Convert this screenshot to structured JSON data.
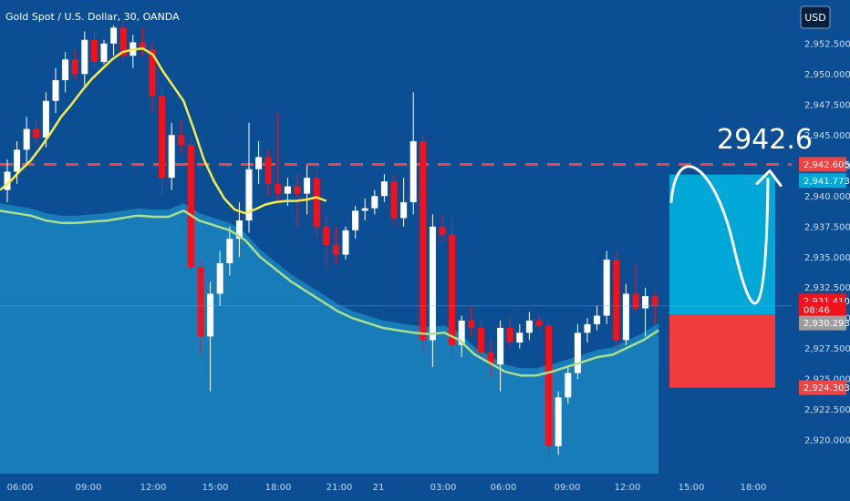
{
  "header": {
    "symbol_title": "Gold Spot / U.S. Dollar, 30, OANDA",
    "currency": "USD"
  },
  "target_label": "2942.6",
  "price_tags": {
    "target": "2,942.605",
    "upper_box": "2,941.773",
    "last": "2,931.410",
    "countdown": "08:46",
    "mid": "2,930.293",
    "stop": "2,924.303"
  },
  "colors": {
    "background": "#0b4e93",
    "bull_candle": "#ffffff",
    "bear_candle": "#f2121b",
    "ma_fast": "#f5ec4a",
    "ma_slow": "#a8e08f",
    "area_fill": "#1e8cc4",
    "target_line": "#f04343",
    "profit_box": "#00a8d8",
    "loss_box": "#f03c3c"
  },
  "chart_data": {
    "type": "candlestick",
    "title": "Gold Spot / U.S. Dollar, 30, OANDA",
    "ylabel": "",
    "xlabel": "",
    "ylim": [
      2918,
      2952
    ],
    "y_ticks": [
      "2,920.000",
      "2,922.500",
      "2,925.000",
      "2,927.500",
      "2,930.000",
      "2,932.500",
      "2,935.000",
      "2,937.500",
      "2,940.000",
      "2,942.500",
      "2,945.000",
      "2,947.500",
      "2,950.000",
      "2,952.500"
    ],
    "x_ticks": [
      "06:00",
      "09:00",
      "12:00",
      "15:00",
      "18:00",
      "21:00",
      "21",
      "03:00",
      "06:00",
      "09:00",
      "12:00",
      "15:00",
      "18:00"
    ],
    "grid": false,
    "candles": [
      {
        "o": 2940.5,
        "h": 2943.0,
        "l": 2939.5,
        "c": 2942.0
      },
      {
        "o": 2942.0,
        "h": 2944.5,
        "l": 2941.0,
        "c": 2943.8
      },
      {
        "o": 2943.8,
        "h": 2946.5,
        "l": 2942.5,
        "c": 2945.5
      },
      {
        "o": 2945.5,
        "h": 2946.2,
        "l": 2944.2,
        "c": 2944.8
      },
      {
        "o": 2944.8,
        "h": 2948.5,
        "l": 2944.0,
        "c": 2947.8
      },
      {
        "o": 2947.8,
        "h": 2950.5,
        "l": 2946.8,
        "c": 2949.5
      },
      {
        "o": 2949.5,
        "h": 2951.8,
        "l": 2948.5,
        "c": 2951.2
      },
      {
        "o": 2951.2,
        "h": 2952.0,
        "l": 2949.5,
        "c": 2950.0
      },
      {
        "o": 2950.0,
        "h": 2953.5,
        "l": 2949.0,
        "c": 2952.8
      },
      {
        "o": 2952.8,
        "h": 2953.5,
        "l": 2950.5,
        "c": 2951.0
      },
      {
        "o": 2951.0,
        "h": 2952.8,
        "l": 2950.8,
        "c": 2952.5
      },
      {
        "o": 2952.5,
        "h": 2954.0,
        "l": 2951.5,
        "c": 2953.8
      },
      {
        "o": 2953.8,
        "h": 2954.5,
        "l": 2951.0,
        "c": 2951.5
      },
      {
        "o": 2951.5,
        "h": 2953.2,
        "l": 2950.5,
        "c": 2952.6
      },
      {
        "o": 2952.6,
        "h": 2953.8,
        "l": 2951.5,
        "c": 2952.0
      },
      {
        "o": 2952.0,
        "h": 2952.6,
        "l": 2946.8,
        "c": 2948.2
      },
      {
        "o": 2948.2,
        "h": 2948.8,
        "l": 2940.0,
        "c": 2941.5
      },
      {
        "o": 2941.5,
        "h": 2946.0,
        "l": 2940.5,
        "c": 2945.0
      },
      {
        "o": 2945.0,
        "h": 2946.2,
        "l": 2943.5,
        "c": 2944.2
      },
      {
        "o": 2944.2,
        "h": 2944.8,
        "l": 2933.8,
        "c": 2934.2
      },
      {
        "o": 2934.2,
        "h": 2934.8,
        "l": 2927.0,
        "c": 2928.5
      },
      {
        "o": 2928.5,
        "h": 2933.0,
        "l": 2924.0,
        "c": 2932.0
      },
      {
        "o": 2932.0,
        "h": 2935.5,
        "l": 2931.0,
        "c": 2934.5
      },
      {
        "o": 2934.5,
        "h": 2937.5,
        "l": 2933.5,
        "c": 2936.5
      },
      {
        "o": 2936.5,
        "h": 2939.5,
        "l": 2935.0,
        "c": 2938.0
      },
      {
        "o": 2938.0,
        "h": 2946.0,
        "l": 2937.0,
        "c": 2942.2
      },
      {
        "o": 2942.2,
        "h": 2944.5,
        "l": 2941.0,
        "c": 2943.2
      },
      {
        "o": 2943.2,
        "h": 2943.8,
        "l": 2940.0,
        "c": 2941.0
      },
      {
        "o": 2941.0,
        "h": 2946.8,
        "l": 2939.5,
        "c": 2940.2
      },
      {
        "o": 2940.2,
        "h": 2941.5,
        "l": 2939.2,
        "c": 2940.8
      },
      {
        "o": 2940.8,
        "h": 2941.8,
        "l": 2937.5,
        "c": 2940.2
      },
      {
        "o": 2940.2,
        "h": 2942.5,
        "l": 2938.5,
        "c": 2941.5
      },
      {
        "o": 2941.5,
        "h": 2942.2,
        "l": 2936.5,
        "c": 2937.5
      },
      {
        "o": 2937.5,
        "h": 2938.5,
        "l": 2934.0,
        "c": 2936.0
      },
      {
        "o": 2936.0,
        "h": 2937.5,
        "l": 2934.5,
        "c": 2935.2
      },
      {
        "o": 2935.2,
        "h": 2937.5,
        "l": 2934.8,
        "c": 2937.2
      },
      {
        "o": 2937.2,
        "h": 2939.2,
        "l": 2936.5,
        "c": 2938.8
      },
      {
        "o": 2938.8,
        "h": 2939.8,
        "l": 2938.0,
        "c": 2939.0
      },
      {
        "o": 2939.0,
        "h": 2940.5,
        "l": 2938.5,
        "c": 2940.0
      },
      {
        "o": 2940.0,
        "h": 2941.8,
        "l": 2939.5,
        "c": 2941.2
      },
      {
        "o": 2941.2,
        "h": 2941.8,
        "l": 2937.5,
        "c": 2938.2
      },
      {
        "o": 2938.2,
        "h": 2941.5,
        "l": 2937.5,
        "c": 2939.5
      },
      {
        "o": 2939.5,
        "h": 2948.5,
        "l": 2938.5,
        "c": 2944.5
      },
      {
        "o": 2944.5,
        "h": 2945.0,
        "l": 2927.2,
        "c": 2928.2
      },
      {
        "o": 2928.2,
        "h": 2938.5,
        "l": 2926.0,
        "c": 2937.5
      },
      {
        "o": 2937.5,
        "h": 2938.5,
        "l": 2936.2,
        "c": 2936.8
      },
      {
        "o": 2936.8,
        "h": 2938.2,
        "l": 2926.5,
        "c": 2927.8
      },
      {
        "o": 2927.8,
        "h": 2930.2,
        "l": 2926.8,
        "c": 2929.8
      },
      {
        "o": 2929.8,
        "h": 2931.0,
        "l": 2928.5,
        "c": 2929.2
      },
      {
        "o": 2929.2,
        "h": 2929.8,
        "l": 2926.5,
        "c": 2927.2
      },
      {
        "o": 2927.2,
        "h": 2928.2,
        "l": 2925.2,
        "c": 2926.2
      },
      {
        "o": 2926.2,
        "h": 2929.8,
        "l": 2924.0,
        "c": 2929.2
      },
      {
        "o": 2929.2,
        "h": 2930.2,
        "l": 2927.5,
        "c": 2928.0
      },
      {
        "o": 2928.0,
        "h": 2929.5,
        "l": 2927.5,
        "c": 2928.8
      },
      {
        "o": 2928.8,
        "h": 2930.5,
        "l": 2928.2,
        "c": 2929.8
      },
      {
        "o": 2929.8,
        "h": 2930.2,
        "l": 2929.0,
        "c": 2929.4
      },
      {
        "o": 2929.4,
        "h": 2929.8,
        "l": 2918.5,
        "c": 2919.5
      },
      {
        "o": 2919.5,
        "h": 2924.0,
        "l": 2918.8,
        "c": 2923.5
      },
      {
        "o": 2923.5,
        "h": 2926.0,
        "l": 2923.0,
        "c": 2925.5
      },
      {
        "o": 2925.5,
        "h": 2929.5,
        "l": 2925.0,
        "c": 2928.8
      },
      {
        "o": 2928.8,
        "h": 2930.0,
        "l": 2928.0,
        "c": 2929.5
      },
      {
        "o": 2929.5,
        "h": 2931.0,
        "l": 2929.0,
        "c": 2930.2
      },
      {
        "o": 2930.2,
        "h": 2935.5,
        "l": 2929.5,
        "c": 2934.8
      },
      {
        "o": 2934.8,
        "h": 2935.5,
        "l": 2927.5,
        "c": 2928.2
      },
      {
        "o": 2928.2,
        "h": 2932.8,
        "l": 2927.8,
        "c": 2932.0
      },
      {
        "o": 2932.0,
        "h": 2934.5,
        "l": 2930.5,
        "c": 2930.8
      },
      {
        "o": 2930.8,
        "h": 2932.5,
        "l": 2928.5,
        "c": 2931.8
      },
      {
        "o": 2931.8,
        "h": 2932.2,
        "l": 2929.5,
        "c": 2931.0
      }
    ],
    "ma_fast_name": "",
    "ma_slow_name": "",
    "ma_fast": [
      2940.5,
      2941.2,
      2942.1,
      2942.9,
      2944.0,
      2945.2,
      2946.5,
      2947.5,
      2948.6,
      2949.6,
      2950.4,
      2951.2,
      2951.8,
      2952.0,
      2952.1,
      2951.6,
      2950.2,
      2949.0,
      2947.8,
      2945.5,
      2943.0,
      2941.2,
      2939.8,
      2938.9,
      2938.6,
      2938.9,
      2939.3,
      2939.5,
      2939.6,
      2939.6,
      2939.7,
      2939.9,
      2939.6
    ],
    "ma_slow": [
      2939.4,
      2939.2,
      2939.0,
      2938.6,
      2938.4,
      2938.4,
      2938.5,
      2938.6,
      2938.8,
      2939.0,
      2938.9,
      2938.9,
      2939.4,
      2938.6,
      2938.2,
      2937.8,
      2937.0,
      2935.6,
      2934.6,
      2933.6,
      2932.8,
      2932.0,
      2931.2,
      2930.6,
      2930.2,
      2929.8,
      2929.6,
      2929.4,
      2929.3,
      2929.4,
      2928.8,
      2927.6,
      2926.9,
      2926.2,
      2925.9,
      2925.9,
      2926.2,
      2926.6,
      2927.0,
      2927.4,
      2927.6,
      2928.2,
      2928.8,
      2929.6
    ]
  },
  "forecast": {
    "target_price": 2942.6,
    "box_top_price": 2941.77,
    "entry_price": 2930.3,
    "stop_price": 2924.3
  }
}
